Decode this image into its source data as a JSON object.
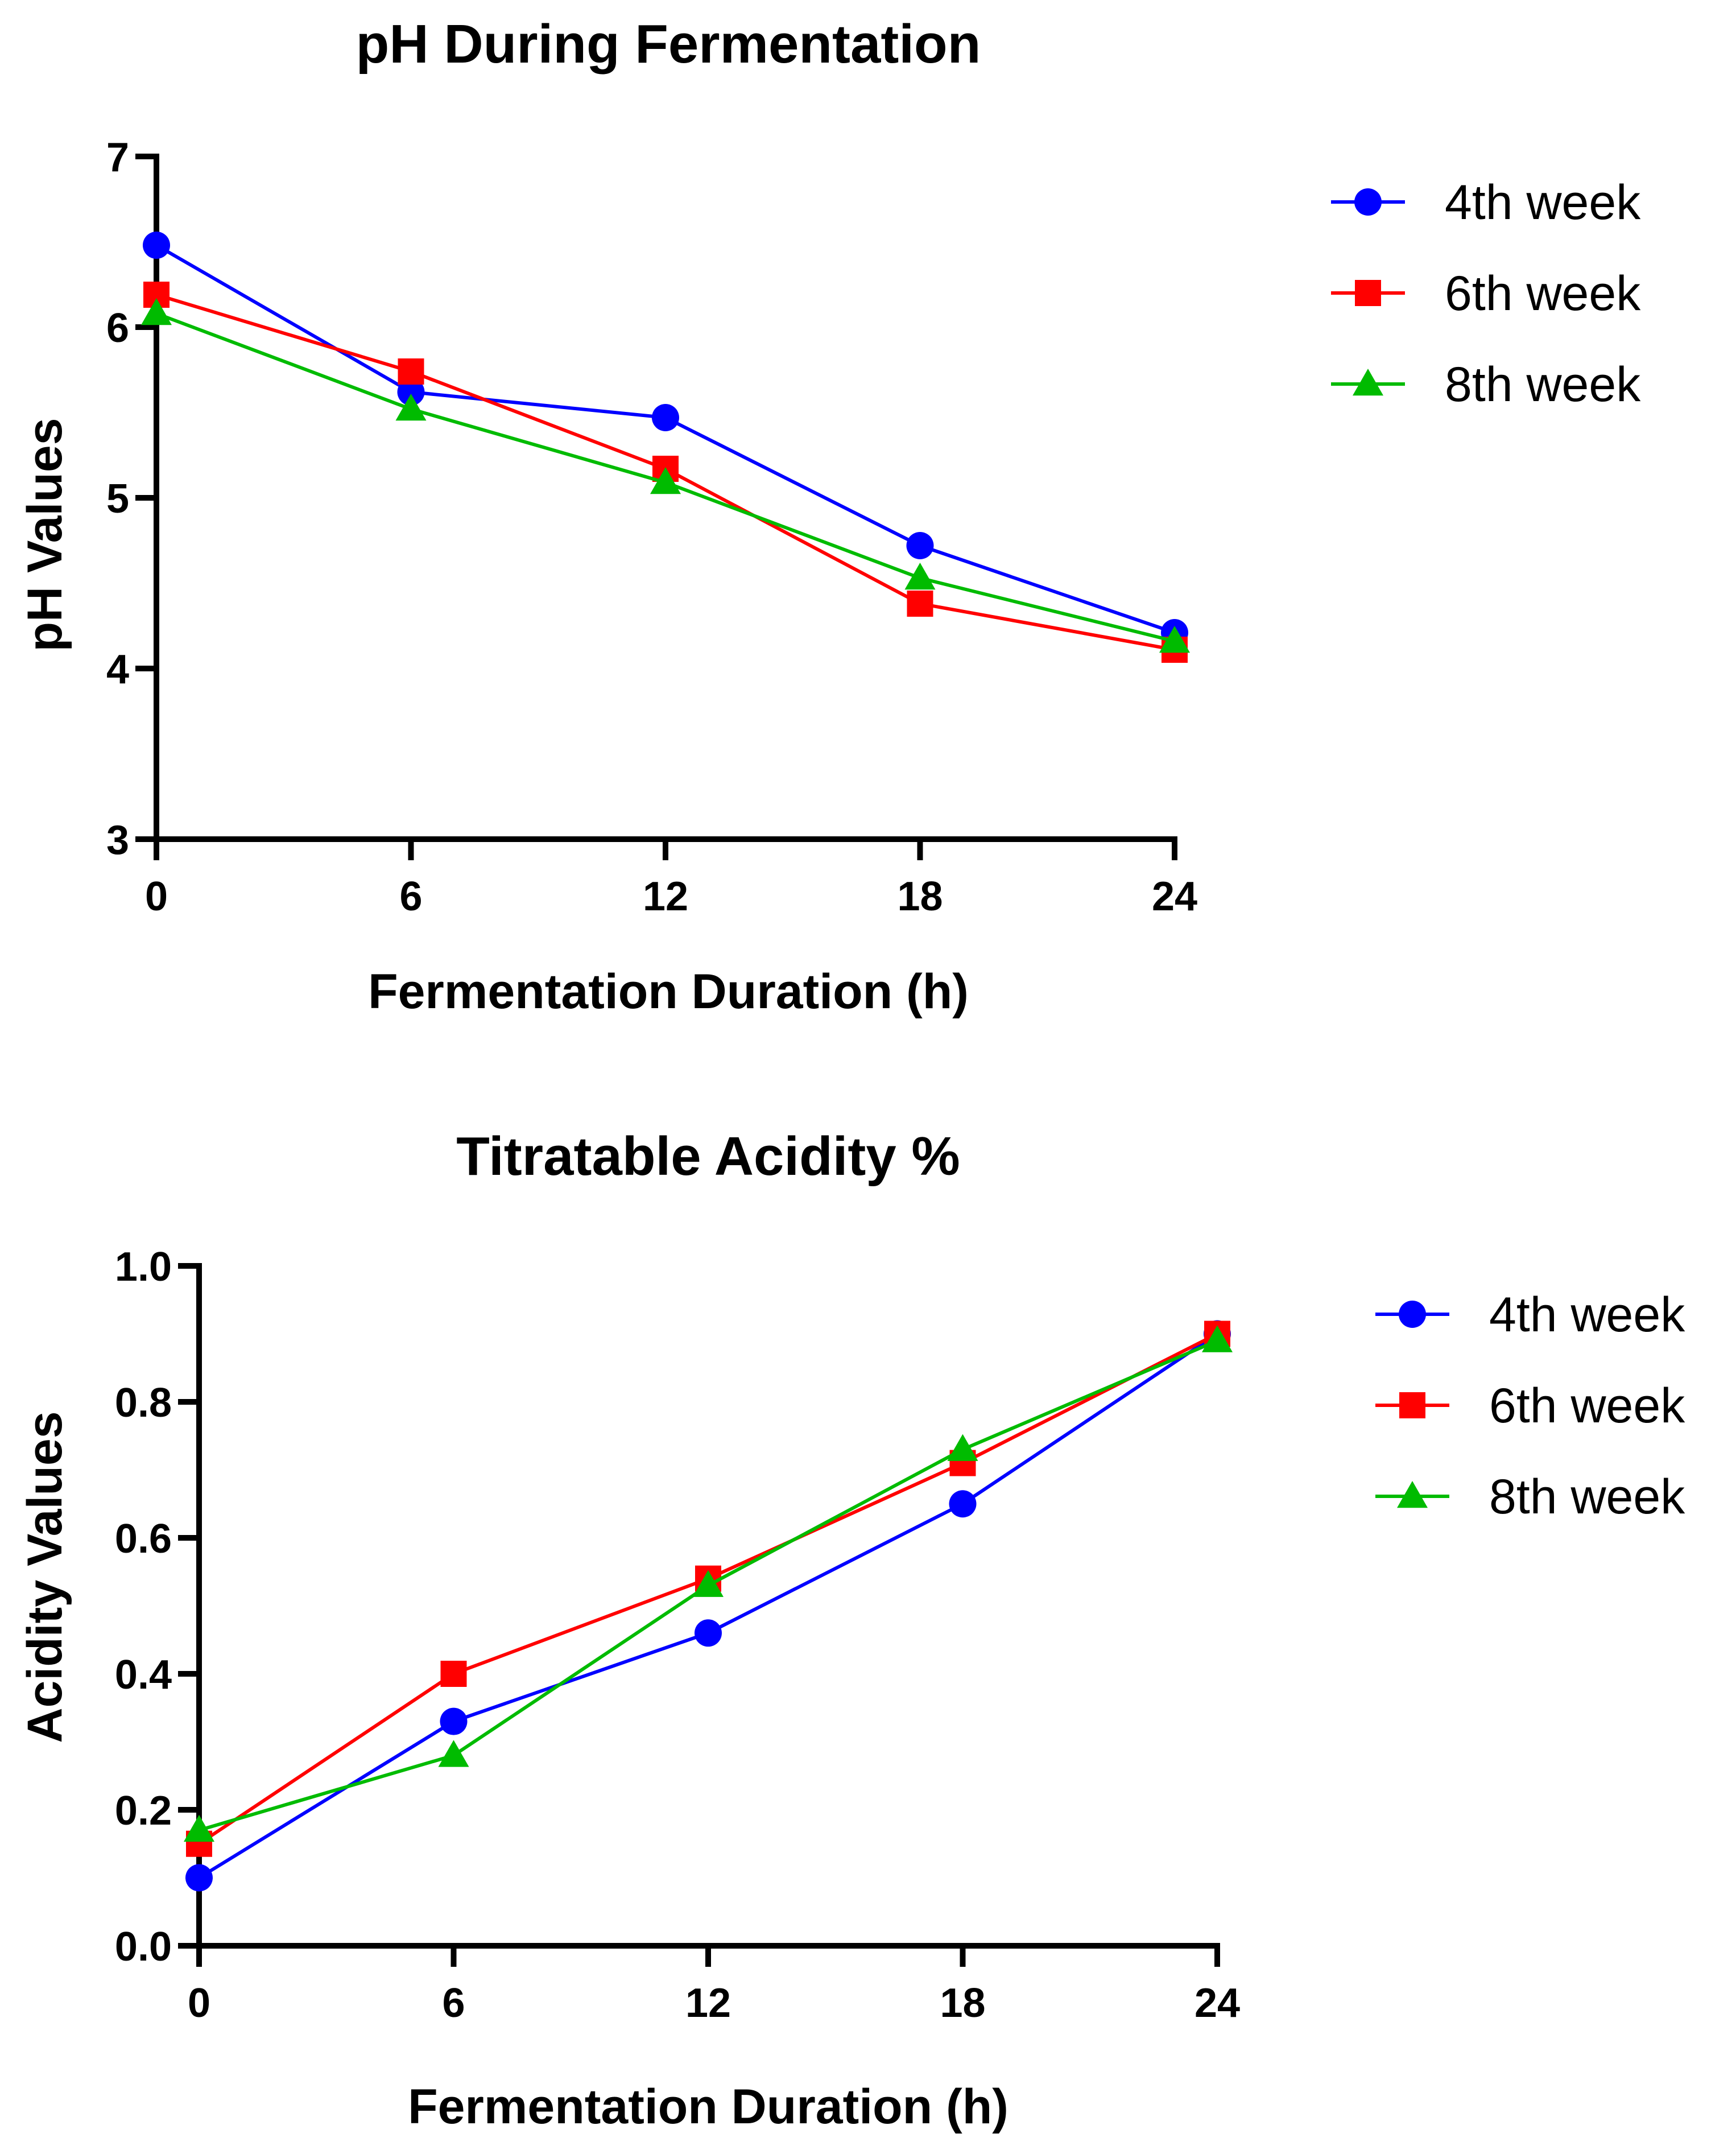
{
  "chart_data": [
    {
      "type": "line",
      "title": "pH During Fermentation",
      "xlabel": "Fermentation Duration (h)",
      "ylabel": "pH Values",
      "x": [
        0,
        6,
        12,
        18,
        24
      ],
      "x_ticks": [
        "0",
        "6",
        "12",
        "18",
        "24"
      ],
      "y_ticks": [
        "3",
        "4",
        "5",
        "6",
        "7"
      ],
      "xlim": [
        0,
        24
      ],
      "ylim": [
        3,
        7
      ],
      "legend_position": "top-right",
      "grid": false,
      "series": [
        {
          "name": "4th week",
          "color": "#0000FF",
          "marker": "circle",
          "values": [
            6.48,
            5.62,
            5.47,
            4.72,
            4.21
          ]
        },
        {
          "name": "6th week",
          "color": "#FF0000",
          "marker": "square",
          "values": [
            6.19,
            5.74,
            5.17,
            4.38,
            4.11
          ]
        },
        {
          "name": "8th week",
          "color": "#00BB00",
          "marker": "triangle",
          "values": [
            6.08,
            5.52,
            5.09,
            4.53,
            4.16
          ]
        }
      ]
    },
    {
      "type": "line",
      "title": "Titratable Acidity %",
      "xlabel": "Fermentation Duration (h)",
      "ylabel": "Acidity Values",
      "x": [
        0,
        6,
        12,
        18,
        24
      ],
      "x_ticks": [
        "0",
        "6",
        "12",
        "18",
        "24"
      ],
      "y_ticks": [
        "0.0",
        "0.2",
        "0.4",
        "0.6",
        "0.8",
        "1.0"
      ],
      "xlim": [
        0,
        24
      ],
      "ylim": [
        0,
        1.0
      ],
      "legend_position": "top-right",
      "grid": false,
      "series": [
        {
          "name": "4th week",
          "color": "#0000FF",
          "marker": "circle",
          "values": [
            0.1,
            0.33,
            0.46,
            0.65,
            0.9
          ]
        },
        {
          "name": "6th week",
          "color": "#FF0000",
          "marker": "square",
          "values": [
            0.15,
            0.4,
            0.54,
            0.71,
            0.9
          ]
        },
        {
          "name": "8th week",
          "color": "#00BB00",
          "marker": "triangle",
          "values": [
            0.17,
            0.28,
            0.53,
            0.73,
            0.89
          ]
        }
      ]
    }
  ]
}
